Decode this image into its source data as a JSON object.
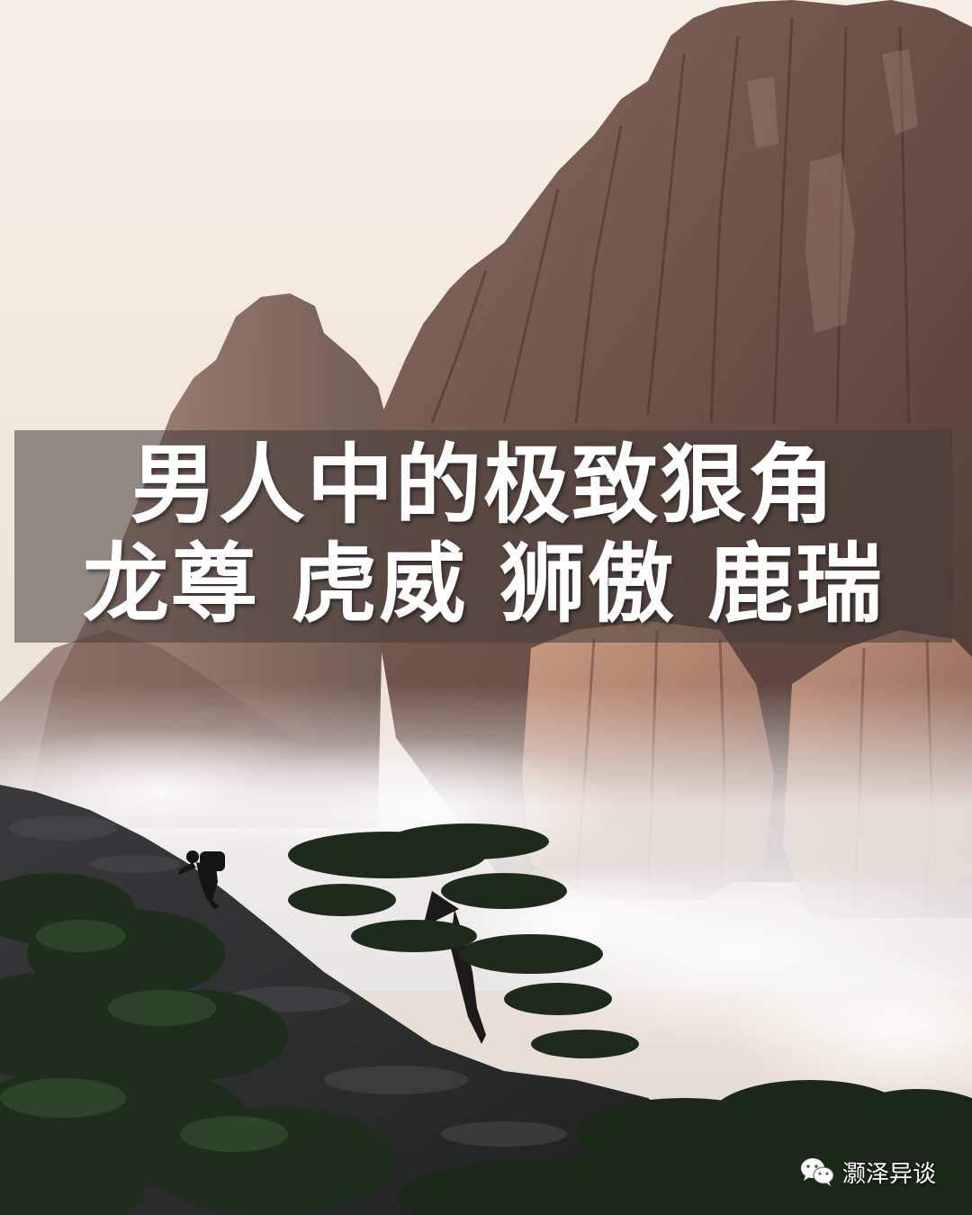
{
  "poster": {
    "title_line_1": "男人中的极致狠角",
    "title_line_2": "龙尊 虎威 狮傲 鹿瑞",
    "watermark_text": "灏泽异谈",
    "watermark_icon": "wechat-icon"
  },
  "colors": {
    "sky": "#f6eee6",
    "rock": "#6b5048",
    "rock_light": "#b98f7a",
    "pine": "#1e2a1c",
    "mist": "#ece9e6",
    "band": "#463c3a",
    "text": "#ffffff"
  }
}
